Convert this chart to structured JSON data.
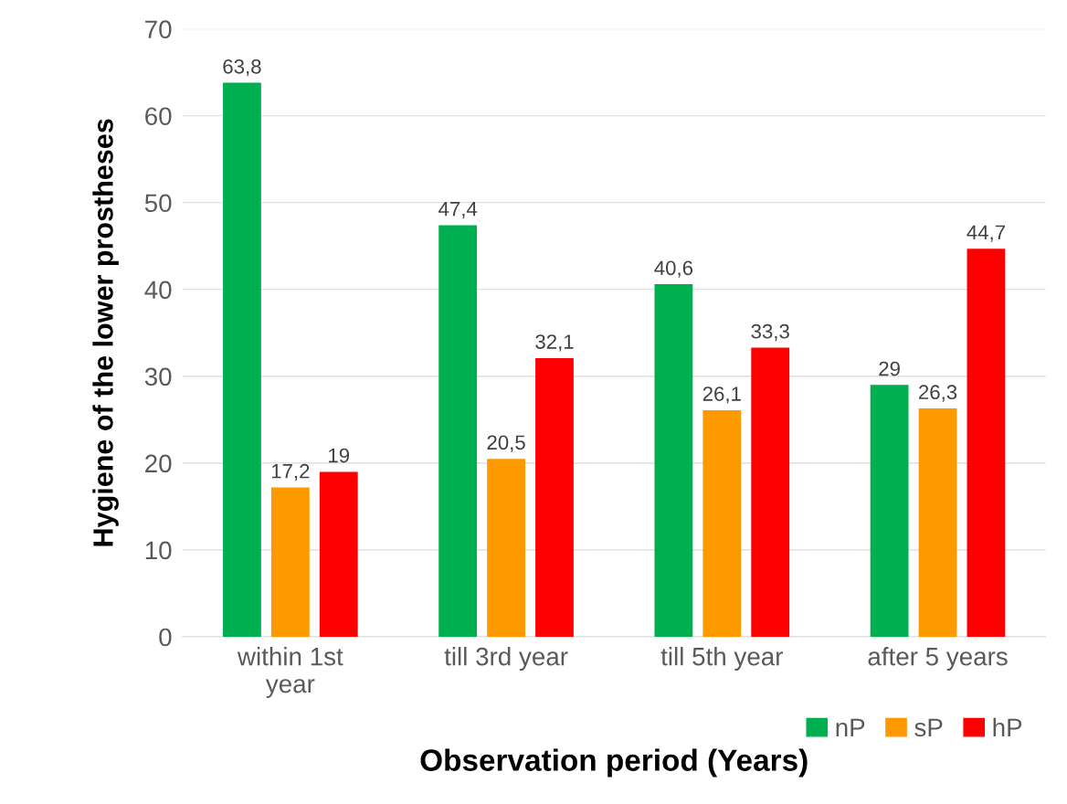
{
  "chart_data": {
    "type": "bar",
    "xlabel": "Observation period (Years)",
    "ylabel": "Hygiene of the lower prostheses",
    "categories": [
      "within 1st\nyear",
      "till 3rd year",
      "till 5th year",
      "after 5 years"
    ],
    "series": [
      {
        "name": "nP",
        "color": "#00b050",
        "values": [
          63.8,
          47.4,
          40.6,
          29
        ],
        "value_labels": [
          "63,8",
          "47,4",
          "40,6",
          "29"
        ]
      },
      {
        "name": "sP",
        "color": "#ff9900",
        "values": [
          17.2,
          20.5,
          26.1,
          26.3
        ],
        "value_labels": [
          "17,2",
          "20,5",
          "26,1",
          "26,3"
        ]
      },
      {
        "name": "hP",
        "color": "#ff0000",
        "values": [
          19,
          32.1,
          33.3,
          44.7
        ],
        "value_labels": [
          "19",
          "32,1",
          "33,3",
          "44,7"
        ]
      }
    ],
    "ylim": [
      0,
      70
    ],
    "yticks": [
      0,
      10,
      20,
      30,
      40,
      50,
      60,
      70
    ],
    "grid": "y",
    "legend": "bottom right"
  }
}
